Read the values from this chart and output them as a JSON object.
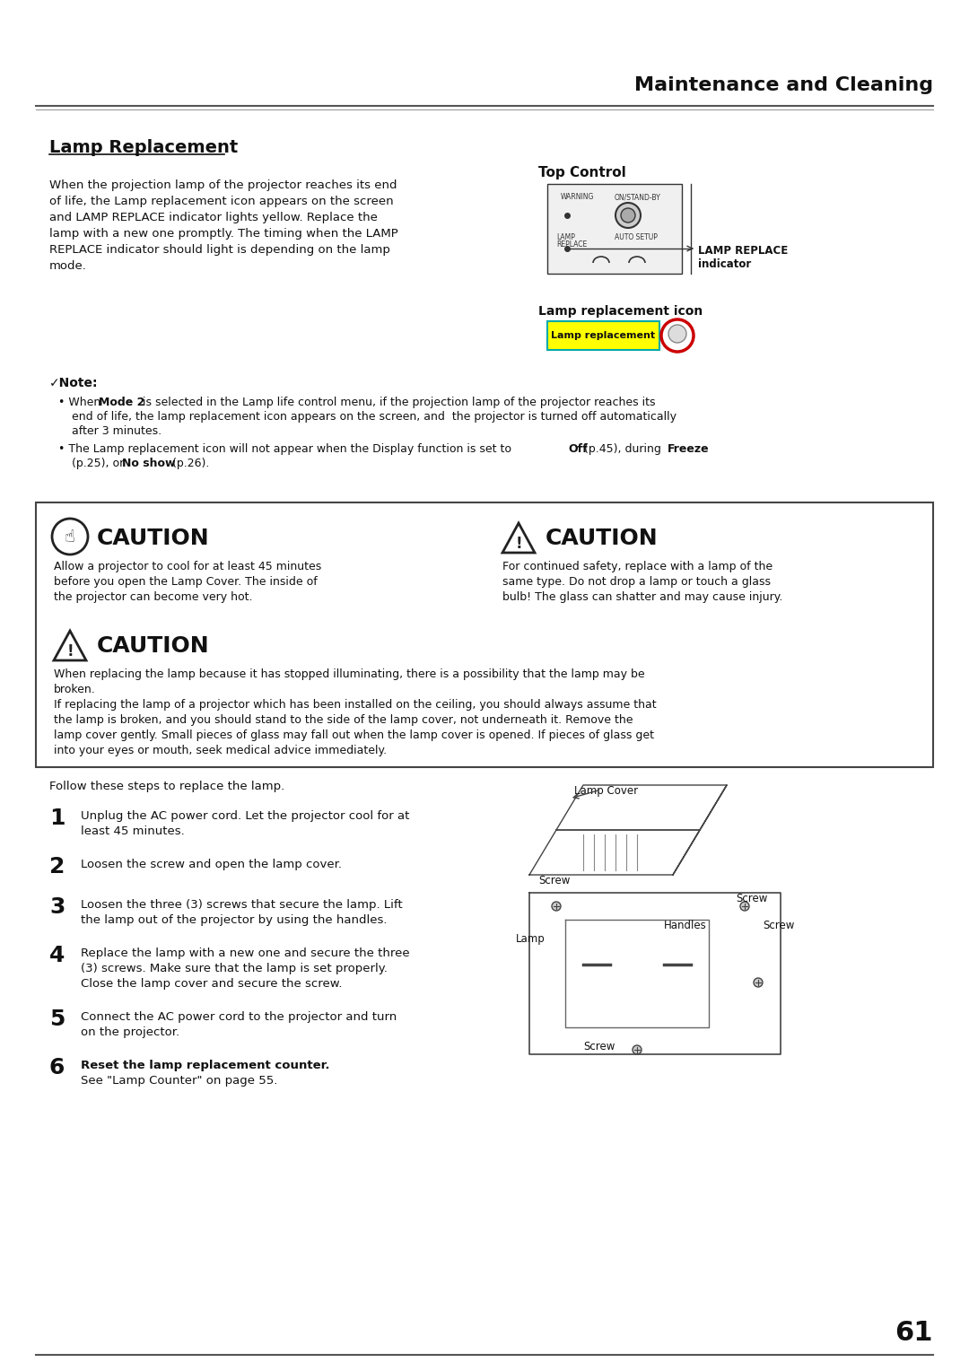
{
  "page_title": "Maintenance and Cleaning",
  "section_title": "Lamp Replacement",
  "bg_color": "#ffffff",
  "text_color": "#000000",
  "page_number": "61",
  "body_text": "When the projection lamp of the projector reaches its end\nof life, the Lamp replacement icon appears on the screen\nand LAMP REPLACE indicator lights yellow. Replace the\nlamp with a new one promptly. The timing when the LAMP\nREPLACE indicator should light is depending on the lamp\nmode.",
  "top_control_label": "Top Control",
  "lamp_replace_indicator": "LAMP REPLACE\nindicator",
  "lamp_icon_label": "Lamp replacement icon",
  "note_label": "✓Note:",
  "note_bullets": [
    "When **Mode 2** is selected in the Lamp life control menu, if the projection lamp of the projector reaches its\n  end of life, the lamp replacement icon appears on the screen, and  the projector is turned off automatically\n  after 3 minutes.",
    "The Lamp replacement icon will not appear when the Display function is set to **Off** (p.45), during **Freeze**\n  (p.25), or **No show** (p.26)."
  ],
  "caution1_text": "Allow a projector to cool for at least 45 minutes\nbefore you open the Lamp Cover. The inside of\nthe projector can become very hot.",
  "caution2_text": "For continued safety, replace with a lamp of the\nsame type. Do not drop a lamp or touch a glass\nbulb! The glass can shatter and may cause injury.",
  "caution3_text": "When replacing the lamp because it has stopped illuminating, there is a possibility that the lamp may be\nbroken.\nIf replacing the lamp of a projector which has been installed on the ceiling, you should always assume that\nthe lamp is broken, and you should stand to the side of the lamp cover, not underneath it. Remove the\nlamp cover gently. Small pieces of glass may fall out when the lamp cover is opened. If pieces of glass get\ninto your eyes or mouth, seek medical advice immediately.",
  "follow_text": "Follow these steps to replace the lamp.",
  "steps": [
    {
      "num": "1",
      "text": "Unplug the AC power cord. Let the projector cool for at\nleast 45 minutes."
    },
    {
      "num": "2",
      "text": "Loosen the screw and open the lamp cover."
    },
    {
      "num": "3",
      "text": "Loosen the three (3) screws that secure the lamp. Lift\nthe lamp out of the projector by using the handles."
    },
    {
      "num": "4",
      "text": "Replace the lamp with a new one and secure the three\n(3) screws. Make sure that the lamp is set properly.\nClose the lamp cover and secure the screw."
    },
    {
      "num": "5",
      "text": "Connect the AC power cord to the projector and turn\non the projector."
    },
    {
      "num": "6",
      "text_bold": "Reset the lamp replacement counter.",
      "text_normal": "See \"Lamp Counter\" on page 55."
    }
  ],
  "diagram_labels": [
    "Lamp Cover",
    "Screw",
    "Screw",
    "Handles",
    "Lamp",
    "Screw",
    "Screw"
  ]
}
